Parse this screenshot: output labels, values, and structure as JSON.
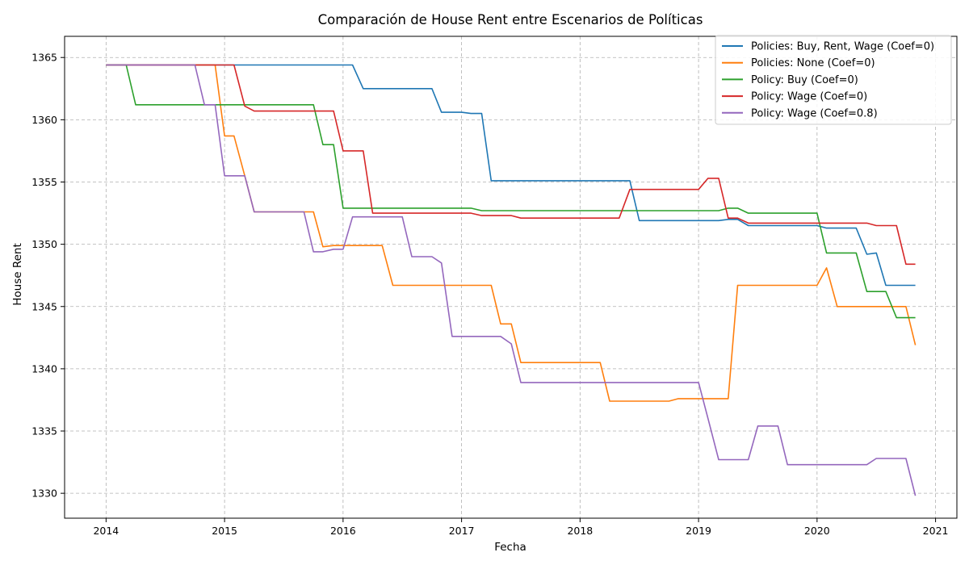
{
  "chart_data": {
    "type": "line",
    "title": "Comparación de House Rent entre Escenarios de Políticas",
    "xlabel": "Fecha",
    "ylabel": "House Rent",
    "x_ticks": [
      "2014",
      "2015",
      "2016",
      "2017",
      "2018",
      "2019",
      "2020",
      "2021"
    ],
    "y_ticks": [
      1330,
      1335,
      1340,
      1345,
      1350,
      1355,
      1360,
      1365
    ],
    "xlim": [
      2013.65,
      2021.18
    ],
    "ylim": [
      1328,
      1366.7
    ],
    "grid": true,
    "legend_position": "top-right",
    "series": [
      {
        "name": "Policies: Buy, Rent, Wage (Coef=0)",
        "color": "#1f77b4",
        "points": [
          [
            2014.0,
            1364.4
          ],
          [
            2016.08,
            1364.4
          ],
          [
            2016.17,
            1362.5
          ],
          [
            2016.75,
            1362.5
          ],
          [
            2016.83,
            1360.6
          ],
          [
            2017.0,
            1360.6
          ],
          [
            2017.08,
            1360.5
          ],
          [
            2017.17,
            1360.5
          ],
          [
            2017.25,
            1355.1
          ],
          [
            2018.42,
            1355.1
          ],
          [
            2018.5,
            1351.9
          ],
          [
            2019.17,
            1351.9
          ],
          [
            2019.25,
            1352.0
          ],
          [
            2019.33,
            1352.0
          ],
          [
            2019.42,
            1351.5
          ],
          [
            2020.0,
            1351.5
          ],
          [
            2020.08,
            1351.3
          ],
          [
            2020.33,
            1351.3
          ],
          [
            2020.42,
            1349.2
          ],
          [
            2020.5,
            1349.3
          ],
          [
            2020.58,
            1346.7
          ],
          [
            2020.83,
            1346.7
          ]
        ]
      },
      {
        "name": "Policies: None (Coef=0)",
        "color": "#ff7f0e",
        "points": [
          [
            2014.0,
            1364.4
          ],
          [
            2014.92,
            1364.4
          ],
          [
            2015.0,
            1358.7
          ],
          [
            2015.08,
            1358.7
          ],
          [
            2015.17,
            1355.5
          ],
          [
            2015.25,
            1352.6
          ],
          [
            2015.75,
            1352.6
          ],
          [
            2015.83,
            1349.8
          ],
          [
            2015.92,
            1349.9
          ],
          [
            2016.33,
            1349.9
          ],
          [
            2016.42,
            1346.7
          ],
          [
            2017.25,
            1346.7
          ],
          [
            2017.33,
            1343.6
          ],
          [
            2017.42,
            1343.6
          ],
          [
            2017.5,
            1340.5
          ],
          [
            2018.17,
            1340.5
          ],
          [
            2018.25,
            1337.4
          ],
          [
            2018.75,
            1337.4
          ],
          [
            2018.83,
            1337.6
          ],
          [
            2019.25,
            1337.6
          ],
          [
            2019.33,
            1346.7
          ],
          [
            2020.0,
            1346.7
          ],
          [
            2020.08,
            1348.1
          ],
          [
            2020.17,
            1345.0
          ],
          [
            2020.75,
            1345.0
          ],
          [
            2020.83,
            1341.9
          ]
        ]
      },
      {
        "name": "Policy: Buy (Coef=0)",
        "color": "#2ca02c",
        "points": [
          [
            2014.0,
            1364.4
          ],
          [
            2014.17,
            1364.4
          ],
          [
            2014.25,
            1361.2
          ],
          [
            2015.75,
            1361.2
          ],
          [
            2015.83,
            1358.0
          ],
          [
            2015.92,
            1358.0
          ],
          [
            2016.0,
            1352.9
          ],
          [
            2017.08,
            1352.9
          ],
          [
            2017.17,
            1352.7
          ],
          [
            2019.17,
            1352.7
          ],
          [
            2019.25,
            1352.9
          ],
          [
            2019.33,
            1352.9
          ],
          [
            2019.42,
            1352.5
          ],
          [
            2020.0,
            1352.5
          ],
          [
            2020.08,
            1349.3
          ],
          [
            2020.33,
            1349.3
          ],
          [
            2020.42,
            1346.2
          ],
          [
            2020.58,
            1346.2
          ],
          [
            2020.67,
            1344.1
          ],
          [
            2020.83,
            1344.1
          ]
        ]
      },
      {
        "name": "Policy: Wage (Coef=0)",
        "color": "#d62728",
        "points": [
          [
            2014.0,
            1364.4
          ],
          [
            2015.08,
            1364.4
          ],
          [
            2015.17,
            1361.1
          ],
          [
            2015.25,
            1360.7
          ],
          [
            2015.92,
            1360.7
          ],
          [
            2016.0,
            1357.5
          ],
          [
            2016.17,
            1357.5
          ],
          [
            2016.25,
            1352.5
          ],
          [
            2017.08,
            1352.5
          ],
          [
            2017.17,
            1352.3
          ],
          [
            2017.42,
            1352.3
          ],
          [
            2017.5,
            1352.1
          ],
          [
            2018.33,
            1352.1
          ],
          [
            2018.42,
            1354.4
          ],
          [
            2019.0,
            1354.4
          ],
          [
            2019.08,
            1355.3
          ],
          [
            2019.17,
            1355.3
          ],
          [
            2019.25,
            1352.1
          ],
          [
            2019.33,
            1352.1
          ],
          [
            2019.42,
            1351.7
          ],
          [
            2020.42,
            1351.7
          ],
          [
            2020.5,
            1351.5
          ],
          [
            2020.67,
            1351.5
          ],
          [
            2020.75,
            1348.4
          ],
          [
            2020.83,
            1348.4
          ]
        ]
      },
      {
        "name": "Policy: Wage (Coef=0.8)",
        "color": "#9467bd",
        "points": [
          [
            2014.0,
            1364.4
          ],
          [
            2014.75,
            1364.4
          ],
          [
            2014.83,
            1361.2
          ],
          [
            2014.92,
            1361.2
          ],
          [
            2015.0,
            1355.5
          ],
          [
            2015.17,
            1355.5
          ],
          [
            2015.25,
            1352.6
          ],
          [
            2015.67,
            1352.6
          ],
          [
            2015.75,
            1349.4
          ],
          [
            2015.83,
            1349.4
          ],
          [
            2015.92,
            1349.6
          ],
          [
            2016.0,
            1349.6
          ],
          [
            2016.08,
            1352.2
          ],
          [
            2016.5,
            1352.2
          ],
          [
            2016.58,
            1349.0
          ],
          [
            2016.75,
            1349.0
          ],
          [
            2016.83,
            1348.5
          ],
          [
            2016.92,
            1342.6
          ],
          [
            2017.33,
            1342.6
          ],
          [
            2017.42,
            1342.0
          ],
          [
            2017.5,
            1338.9
          ],
          [
            2019.0,
            1338.9
          ],
          [
            2019.08,
            1336.0
          ],
          [
            2019.17,
            1332.7
          ],
          [
            2019.42,
            1332.7
          ],
          [
            2019.5,
            1335.4
          ],
          [
            2019.67,
            1335.4
          ],
          [
            2019.75,
            1332.3
          ],
          [
            2020.42,
            1332.3
          ],
          [
            2020.5,
            1332.8
          ],
          [
            2020.75,
            1332.8
          ],
          [
            2020.83,
            1329.8
          ]
        ]
      }
    ]
  }
}
